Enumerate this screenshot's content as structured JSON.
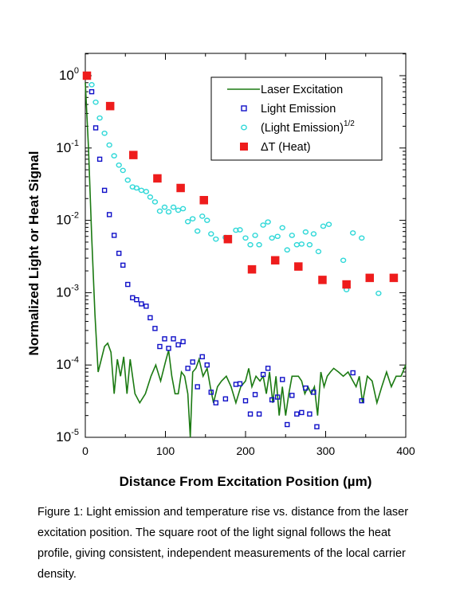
{
  "chart_data": {
    "type": "scatter",
    "xlabel": "Distance From Excitation Position (µm)",
    "ylabel": "Normalized Light or Heat Signal",
    "xlim": [
      0,
      400
    ],
    "ylim": [
      1e-05,
      2
    ],
    "yscale": "log",
    "x_ticks": [
      "0",
      "100",
      "200",
      "300",
      "400"
    ],
    "y_ticks": [
      {
        "base": "10",
        "exp": "0"
      },
      {
        "base": "10",
        "exp": "-1"
      },
      {
        "base": "10",
        "exp": "-2"
      },
      {
        "base": "10",
        "exp": "-3"
      },
      {
        "base": "10",
        "exp": "-4"
      },
      {
        "base": "10",
        "exp": "-5"
      }
    ],
    "legend_position": "top-right",
    "series": [
      {
        "name": "Laser Excitation",
        "style": "line",
        "color": "#1b7a12",
        "x": [
          0,
          4,
          8,
          12,
          16,
          20,
          24,
          28,
          32,
          36,
          40,
          44,
          48,
          52,
          56,
          62,
          68,
          75,
          82,
          88,
          94,
          100,
          104,
          108,
          112,
          116,
          120,
          124,
          128,
          131,
          134,
          138,
          142,
          147,
          152,
          156,
          160,
          165,
          170,
          176,
          182,
          188,
          194,
          200,
          204,
          208,
          213,
          218,
          222,
          226,
          230,
          234,
          238,
          242,
          246,
          250,
          254,
          258,
          262,
          266,
          270,
          274,
          278,
          282,
          286,
          290,
          294,
          298,
          302,
          306,
          310,
          316,
          322,
          328,
          334,
          338,
          342,
          346,
          352,
          358,
          364,
          370,
          376,
          382,
          388,
          394,
          400
        ],
        "y": [
          0.8,
          0.1,
          0.006,
          0.0005,
          8e-05,
          0.00012,
          0.00018,
          0.0002,
          0.00015,
          4e-05,
          0.00012,
          7e-05,
          0.00013,
          4e-05,
          0.00012,
          4e-05,
          3e-05,
          4e-05,
          7e-05,
          0.0001,
          6e-05,
          0.00011,
          0.00016,
          7e-05,
          4e-05,
          4e-05,
          8e-05,
          7e-05,
          4e-05,
          1e-05,
          8e-05,
          9e-05,
          0.00012,
          7e-05,
          9e-05,
          5e-05,
          3e-05,
          5e-05,
          6e-05,
          7e-05,
          5e-05,
          3e-05,
          5e-05,
          6e-05,
          9e-05,
          5e-05,
          7e-05,
          6e-05,
          7e-05,
          4e-05,
          8e-05,
          3e-05,
          7e-05,
          2e-05,
          5e-05,
          2e-05,
          4e-05,
          7e-05,
          7e-05,
          7e-05,
          6e-05,
          4e-05,
          5e-05,
          4e-05,
          5e-05,
          2e-05,
          8e-05,
          5e-05,
          7e-05,
          8e-05,
          9e-05,
          8e-05,
          7e-05,
          8e-05,
          6e-05,
          5e-05,
          7e-05,
          3e-05,
          7e-05,
          6e-05,
          3e-05,
          5e-05,
          8e-05,
          5e-05,
          7e-05,
          7e-05,
          0.0001
        ]
      },
      {
        "name": "Light Emission",
        "style": "open-square",
        "color": "#1010c8",
        "x": [
          8,
          13,
          18,
          24,
          30,
          36,
          42,
          47,
          53,
          59,
          64,
          70,
          76,
          81,
          87,
          93,
          99,
          104,
          110,
          116,
          122,
          128,
          134,
          140,
          146,
          152,
          157,
          163,
          175,
          188,
          193,
          200,
          206,
          212,
          217,
          222,
          228,
          233,
          240,
          246,
          252,
          258,
          264,
          270,
          275,
          280,
          285,
          289,
          334,
          345
        ],
        "y": [
          0.6,
          0.19,
          0.07,
          0.026,
          0.012,
          0.0062,
          0.0035,
          0.0024,
          0.0013,
          0.00085,
          0.0008,
          0.0007,
          0.00065,
          0.00045,
          0.00032,
          0.00018,
          0.00023,
          0.00017,
          0.00023,
          0.00019,
          0.00021,
          9e-05,
          0.00011,
          5e-05,
          0.00013,
          0.0001,
          4.2e-05,
          3e-05,
          3.4e-05,
          5.4e-05,
          5.5e-05,
          3.2e-05,
          2.1e-05,
          3.9e-05,
          2.1e-05,
          7.4e-05,
          9e-05,
          3.3e-05,
          3.6e-05,
          6.3e-05,
          1.5e-05,
          3.8e-05,
          2.1e-05,
          2.2e-05,
          4.8e-05,
          2.1e-05,
          4.2e-05,
          1.4e-05,
          7.8e-05,
          3.2e-05
        ]
      },
      {
        "name": "(Light Emission)^1/2",
        "label": "(Light Emission)",
        "label_sup": "1/2",
        "style": "open-circle",
        "color": "#2fd8d8",
        "x": [
          8,
          13,
          18,
          24,
          30,
          36,
          42,
          47,
          53,
          59,
          64,
          70,
          76,
          81,
          87,
          93,
          99,
          104,
          110,
          116,
          122,
          128,
          134,
          140,
          146,
          152,
          157,
          163,
          175,
          188,
          193,
          200,
          206,
          212,
          217,
          222,
          228,
          233,
          240,
          246,
          252,
          258,
          264,
          270,
          275,
          280,
          285,
          291,
          297,
          304,
          322,
          326,
          334,
          345,
          366
        ],
        "y": [
          0.75,
          0.43,
          0.26,
          0.16,
          0.11,
          0.078,
          0.058,
          0.049,
          0.036,
          0.029,
          0.028,
          0.026,
          0.025,
          0.021,
          0.018,
          0.0134,
          0.0152,
          0.0131,
          0.0152,
          0.0138,
          0.0145,
          0.0096,
          0.0105,
          0.0071,
          0.0114,
          0.01,
          0.0065,
          0.0055,
          0.0058,
          0.0073,
          0.0074,
          0.0057,
          0.0046,
          0.0062,
          0.0046,
          0.0086,
          0.0095,
          0.0057,
          0.006,
          0.0079,
          0.0039,
          0.0062,
          0.0046,
          0.0047,
          0.0069,
          0.0046,
          0.0065,
          0.0037,
          0.0083,
          0.0088,
          0.0028,
          0.0011,
          0.0067,
          0.0057,
          0.00098
        ]
      },
      {
        "name": "ΔT (Heat)",
        "style": "filled-square",
        "color": "#ee1c1c",
        "x": [
          2,
          31,
          60,
          90,
          119,
          148,
          178,
          208,
          237,
          266,
          296,
          326,
          355,
          385
        ],
        "y": [
          1.0,
          0.38,
          0.08,
          0.038,
          0.028,
          0.019,
          0.0055,
          0.0021,
          0.0028,
          0.0023,
          0.0015,
          0.0013,
          0.0016,
          0.0016
        ]
      }
    ]
  },
  "caption": "Figure 1: Light emission and temperature rise vs. distance from the laser excitation position. The square root of the light signal follows the heat profile, giving consistent, independent measurements of the local carrier density."
}
